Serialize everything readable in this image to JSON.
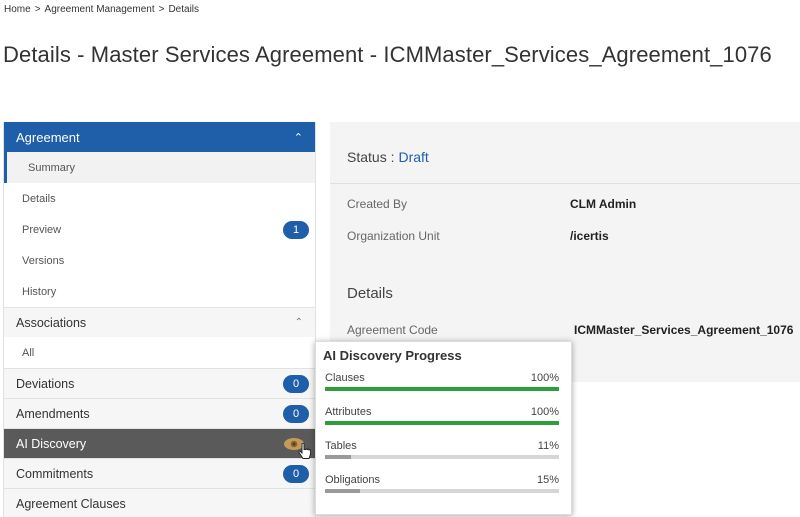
{
  "breadcrumb": [
    "Home",
    "Agreement Management",
    "Details"
  ],
  "breadcrumb_sep": ">",
  "page_title": "Details - Master Services Agreement - ICMMaster_Services_Agreement_1076",
  "sidebar": {
    "agreement_header": "Agreement",
    "agreement_items": [
      {
        "label": "Summary",
        "active": true
      },
      {
        "label": "Details"
      },
      {
        "label": "Preview",
        "badge": "1"
      },
      {
        "label": "Versions"
      },
      {
        "label": "History"
      }
    ],
    "associations_header": "Associations",
    "associations_items": [
      {
        "label": "All"
      }
    ],
    "sections": [
      {
        "label": "Deviations",
        "badge": "0"
      },
      {
        "label": "Amendments",
        "badge": "0"
      },
      {
        "label": "AI Discovery",
        "icon": "eye-icon"
      },
      {
        "label": "Commitments",
        "badge": "0"
      },
      {
        "label": "Agreement Clauses"
      }
    ]
  },
  "main": {
    "status_label": "Status :",
    "status_value": "Draft",
    "created_by_label": "Created By",
    "created_by_value": "CLM Admin",
    "org_unit_label": "Organization Unit",
    "org_unit_value": "/icertis",
    "details_title": "Details",
    "agreement_code_label": "Agreement Code",
    "agreement_code_value": "ICMMaster_Services_Agreement_1076"
  },
  "ai_popup": {
    "title": "AI Discovery Progress",
    "items": [
      {
        "label": "Clauses",
        "percent_label": "100%",
        "percent": 100,
        "color": "#2e9e3a"
      },
      {
        "label": "Attributes",
        "percent_label": "100%",
        "percent": 100,
        "color": "#2e9e3a"
      },
      {
        "label": "Tables",
        "percent_label": "11%",
        "percent": 11,
        "color": "#9a9a9a"
      },
      {
        "label": "Obligations",
        "percent_label": "15%",
        "percent": 15,
        "color": "#9a9a9a"
      }
    ]
  },
  "colors": {
    "accent": "#1f5ea8",
    "active_section": "#5a5a5a",
    "complete": "#2e9e3a"
  }
}
